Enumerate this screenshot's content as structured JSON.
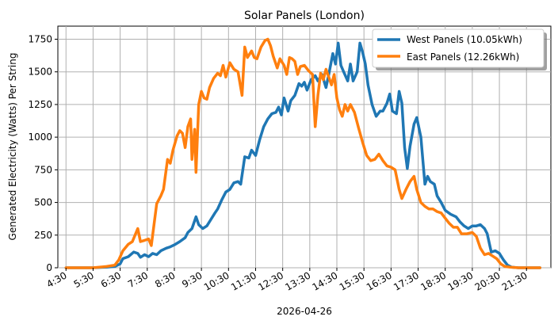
{
  "chart_data": {
    "type": "line",
    "title": "Solar Panels (London)",
    "xlabel": "2026-04-26",
    "ylabel": "Generated Electricity (Watts) Per String",
    "x_tick_labels": [
      "4:30",
      "5:30",
      "6:30",
      "7:30",
      "8:30",
      "9:30",
      "10:30",
      "11:30",
      "12:30",
      "13:30",
      "14:30",
      "15:30",
      "16:30",
      "17:30",
      "18:30",
      "19:30",
      "20:30",
      "21:30"
    ],
    "y_ticks": [
      0,
      250,
      500,
      750,
      1000,
      1250,
      1500,
      1750
    ],
    "xlim": [
      4.2,
      22.4
    ],
    "ylim": [
      0,
      1850
    ],
    "grid": true,
    "legend_position": "top-right",
    "series": [
      {
        "name": "West Panels (10.05kWh)",
        "color": "#1f77b4",
        "points": [
          [
            4.5,
            0
          ],
          [
            5.5,
            0
          ],
          [
            6.0,
            5
          ],
          [
            6.3,
            10
          ],
          [
            6.5,
            30
          ],
          [
            6.6,
            70
          ],
          [
            6.8,
            85
          ],
          [
            7.0,
            120
          ],
          [
            7.15,
            110
          ],
          [
            7.25,
            80
          ],
          [
            7.4,
            100
          ],
          [
            7.55,
            85
          ],
          [
            7.7,
            110
          ],
          [
            7.85,
            100
          ],
          [
            8.0,
            130
          ],
          [
            8.2,
            150
          ],
          [
            8.35,
            160
          ],
          [
            8.5,
            175
          ],
          [
            8.7,
            200
          ],
          [
            8.9,
            230
          ],
          [
            9.0,
            270
          ],
          [
            9.15,
            300
          ],
          [
            9.3,
            390
          ],
          [
            9.4,
            330
          ],
          [
            9.55,
            300
          ],
          [
            9.7,
            320
          ],
          [
            9.85,
            370
          ],
          [
            10.0,
            420
          ],
          [
            10.1,
            450
          ],
          [
            10.25,
            520
          ],
          [
            10.4,
            580
          ],
          [
            10.55,
            600
          ],
          [
            10.7,
            650
          ],
          [
            10.85,
            660
          ],
          [
            10.95,
            640
          ],
          [
            11.1,
            850
          ],
          [
            11.25,
            840
          ],
          [
            11.35,
            900
          ],
          [
            11.5,
            860
          ],
          [
            11.65,
            980
          ],
          [
            11.8,
            1080
          ],
          [
            11.95,
            1140
          ],
          [
            12.1,
            1180
          ],
          [
            12.25,
            1190
          ],
          [
            12.35,
            1230
          ],
          [
            12.45,
            1170
          ],
          [
            12.55,
            1300
          ],
          [
            12.7,
            1200
          ],
          [
            12.8,
            1280
          ],
          [
            12.95,
            1320
          ],
          [
            13.1,
            1410
          ],
          [
            13.2,
            1390
          ],
          [
            13.3,
            1420
          ],
          [
            13.4,
            1360
          ],
          [
            13.55,
            1440
          ],
          [
            13.7,
            1470
          ],
          [
            13.8,
            1430
          ],
          [
            13.95,
            1480
          ],
          [
            14.1,
            1380
          ],
          [
            14.2,
            1480
          ],
          [
            14.35,
            1640
          ],
          [
            14.45,
            1560
          ],
          [
            14.55,
            1720
          ],
          [
            14.65,
            1550
          ],
          [
            14.75,
            1500
          ],
          [
            14.9,
            1430
          ],
          [
            15.0,
            1560
          ],
          [
            15.1,
            1430
          ],
          [
            15.25,
            1500
          ],
          [
            15.35,
            1720
          ],
          [
            15.45,
            1650
          ],
          [
            15.55,
            1560
          ],
          [
            15.65,
            1400
          ],
          [
            15.8,
            1250
          ],
          [
            15.95,
            1160
          ],
          [
            16.1,
            1200
          ],
          [
            16.2,
            1200
          ],
          [
            16.35,
            1260
          ],
          [
            16.45,
            1330
          ],
          [
            16.55,
            1200
          ],
          [
            16.7,
            1180
          ],
          [
            16.8,
            1350
          ],
          [
            16.9,
            1260
          ],
          [
            17.0,
            920
          ],
          [
            17.1,
            760
          ],
          [
            17.2,
            930
          ],
          [
            17.35,
            1100
          ],
          [
            17.45,
            1150
          ],
          [
            17.6,
            1000
          ],
          [
            17.75,
            640
          ],
          [
            17.85,
            700
          ],
          [
            17.95,
            660
          ],
          [
            18.1,
            640
          ],
          [
            18.2,
            550
          ],
          [
            18.35,
            500
          ],
          [
            18.5,
            440
          ],
          [
            18.7,
            410
          ],
          [
            18.9,
            390
          ],
          [
            19.05,
            350
          ],
          [
            19.2,
            320
          ],
          [
            19.35,
            300
          ],
          [
            19.5,
            320
          ],
          [
            19.65,
            320
          ],
          [
            19.8,
            330
          ],
          [
            19.95,
            300
          ],
          [
            20.05,
            260
          ],
          [
            20.2,
            120
          ],
          [
            20.35,
            130
          ],
          [
            20.5,
            110
          ],
          [
            20.65,
            60
          ],
          [
            20.8,
            20
          ],
          [
            20.95,
            5
          ],
          [
            21.2,
            0
          ],
          [
            22.0,
            0
          ]
        ]
      },
      {
        "name": "East Panels (12.26kWh)",
        "color": "#ff7f0e",
        "points": [
          [
            4.5,
            0
          ],
          [
            5.5,
            0
          ],
          [
            6.0,
            10
          ],
          [
            6.3,
            20
          ],
          [
            6.45,
            60
          ],
          [
            6.6,
            130
          ],
          [
            6.8,
            180
          ],
          [
            6.95,
            200
          ],
          [
            7.05,
            250
          ],
          [
            7.15,
            300
          ],
          [
            7.25,
            200
          ],
          [
            7.4,
            210
          ],
          [
            7.55,
            220
          ],
          [
            7.65,
            170
          ],
          [
            7.75,
            330
          ],
          [
            7.85,
            490
          ],
          [
            8.0,
            550
          ],
          [
            8.1,
            600
          ],
          [
            8.25,
            830
          ],
          [
            8.35,
            800
          ],
          [
            8.45,
            900
          ],
          [
            8.6,
            1010
          ],
          [
            8.7,
            1050
          ],
          [
            8.8,
            1030
          ],
          [
            8.9,
            920
          ],
          [
            9.0,
            1080
          ],
          [
            9.1,
            1140
          ],
          [
            9.15,
            830
          ],
          [
            9.25,
            1060
          ],
          [
            9.3,
            730
          ],
          [
            9.4,
            1250
          ],
          [
            9.5,
            1350
          ],
          [
            9.6,
            1300
          ],
          [
            9.7,
            1290
          ],
          [
            9.8,
            1380
          ],
          [
            9.95,
            1450
          ],
          [
            10.1,
            1490
          ],
          [
            10.2,
            1470
          ],
          [
            10.3,
            1550
          ],
          [
            10.4,
            1460
          ],
          [
            10.55,
            1570
          ],
          [
            10.7,
            1520
          ],
          [
            10.85,
            1500
          ],
          [
            11.0,
            1320
          ],
          [
            11.1,
            1690
          ],
          [
            11.2,
            1610
          ],
          [
            11.35,
            1660
          ],
          [
            11.45,
            1610
          ],
          [
            11.55,
            1600
          ],
          [
            11.7,
            1690
          ],
          [
            11.85,
            1740
          ],
          [
            11.95,
            1750
          ],
          [
            12.05,
            1700
          ],
          [
            12.15,
            1620
          ],
          [
            12.3,
            1530
          ],
          [
            12.4,
            1600
          ],
          [
            12.55,
            1550
          ],
          [
            12.65,
            1480
          ],
          [
            12.75,
            1610
          ],
          [
            12.85,
            1600
          ],
          [
            12.95,
            1580
          ],
          [
            13.05,
            1480
          ],
          [
            13.15,
            1540
          ],
          [
            13.3,
            1550
          ],
          [
            13.45,
            1510
          ],
          [
            13.6,
            1480
          ],
          [
            13.7,
            1080
          ],
          [
            13.8,
            1320
          ],
          [
            13.9,
            1490
          ],
          [
            14.0,
            1440
          ],
          [
            14.1,
            1520
          ],
          [
            14.2,
            1460
          ],
          [
            14.3,
            1400
          ],
          [
            14.4,
            1480
          ],
          [
            14.5,
            1300
          ],
          [
            14.6,
            1210
          ],
          [
            14.7,
            1160
          ],
          [
            14.8,
            1250
          ],
          [
            14.9,
            1200
          ],
          [
            15.0,
            1250
          ],
          [
            15.15,
            1190
          ],
          [
            15.3,
            1070
          ],
          [
            15.45,
            960
          ],
          [
            15.6,
            860
          ],
          [
            15.75,
            820
          ],
          [
            15.9,
            830
          ],
          [
            16.05,
            870
          ],
          [
            16.2,
            820
          ],
          [
            16.35,
            780
          ],
          [
            16.5,
            770
          ],
          [
            16.65,
            750
          ],
          [
            16.8,
            600
          ],
          [
            16.9,
            530
          ],
          [
            17.05,
            600
          ],
          [
            17.2,
            660
          ],
          [
            17.35,
            700
          ],
          [
            17.45,
            600
          ],
          [
            17.6,
            500
          ],
          [
            17.75,
            470
          ],
          [
            17.9,
            450
          ],
          [
            18.05,
            450
          ],
          [
            18.2,
            430
          ],
          [
            18.35,
            420
          ],
          [
            18.5,
            380
          ],
          [
            18.65,
            340
          ],
          [
            18.8,
            310
          ],
          [
            18.95,
            310
          ],
          [
            19.1,
            260
          ],
          [
            19.3,
            260
          ],
          [
            19.5,
            270
          ],
          [
            19.65,
            240
          ],
          [
            19.8,
            150
          ],
          [
            19.95,
            100
          ],
          [
            20.1,
            110
          ],
          [
            20.25,
            90
          ],
          [
            20.4,
            70
          ],
          [
            20.55,
            30
          ],
          [
            20.7,
            10
          ],
          [
            20.9,
            5
          ],
          [
            21.2,
            0
          ],
          [
            22.0,
            0
          ]
        ]
      }
    ]
  }
}
